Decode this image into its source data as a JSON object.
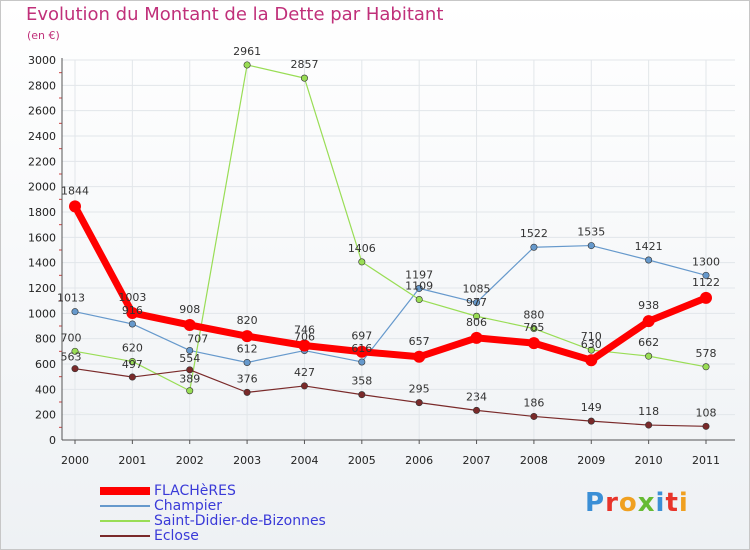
{
  "title": "Evolution du Montant de la Dette par Habitant",
  "subtitle": "(en €)",
  "logo": "Proxiti",
  "chart_data": {
    "type": "line",
    "x": [
      "2000",
      "2001",
      "2002",
      "2003",
      "2004",
      "2005",
      "2006",
      "2007",
      "2008",
      "2009",
      "2010",
      "2011"
    ],
    "ylim": [
      0,
      3000
    ],
    "yticks": [
      0,
      200,
      400,
      600,
      800,
      1000,
      1200,
      1400,
      1600,
      1800,
      2000,
      2200,
      2400,
      2600,
      2800,
      3000
    ],
    "grid": true,
    "legend_position": "bottom-left",
    "series": [
      {
        "name": "FLACHèRES",
        "color": "#ff0000",
        "values": [
          1844,
          1003,
          908,
          820,
          746,
          697,
          657,
          806,
          765,
          630,
          938,
          1122
        ]
      },
      {
        "name": "Champier",
        "color": "#6699cc",
        "values": [
          1013,
          916,
          707,
          612,
          706,
          616,
          1197,
          1085,
          1522,
          1535,
          1421,
          1300
        ]
      },
      {
        "name": "Saint-Didier-de-Bizonnes",
        "color": "#99dd55",
        "values": [
          700,
          620,
          389,
          2961,
          2857,
          1406,
          1109,
          977,
          880,
          710,
          662,
          578
        ]
      },
      {
        "name": "Eclose",
        "color": "#7a2a2a",
        "values": [
          563,
          497,
          554,
          376,
          427,
          358,
          295,
          234,
          186,
          149,
          118,
          108
        ]
      }
    ]
  }
}
